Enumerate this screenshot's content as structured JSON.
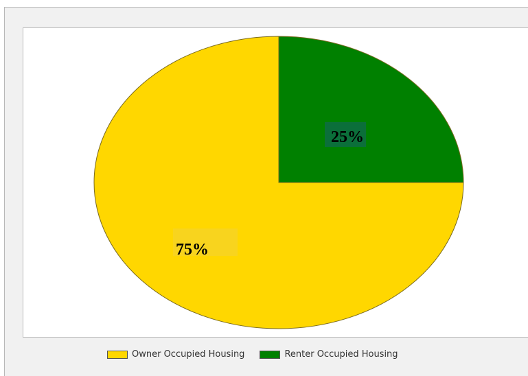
{
  "chart_data": {
    "type": "pie",
    "title": "",
    "slices": [
      {
        "name": "Owner Occupied Housing",
        "value": 75,
        "label": "75%",
        "color": "#ffd700"
      },
      {
        "name": "Renter Occupied Housing",
        "value": 25,
        "label": "25%",
        "color": "#008000"
      }
    ],
    "start_angle_deg": 0,
    "direction": "counterclockwise-from-east",
    "legend_position": "bottom-center",
    "edge_color": "#7a6a20"
  }
}
